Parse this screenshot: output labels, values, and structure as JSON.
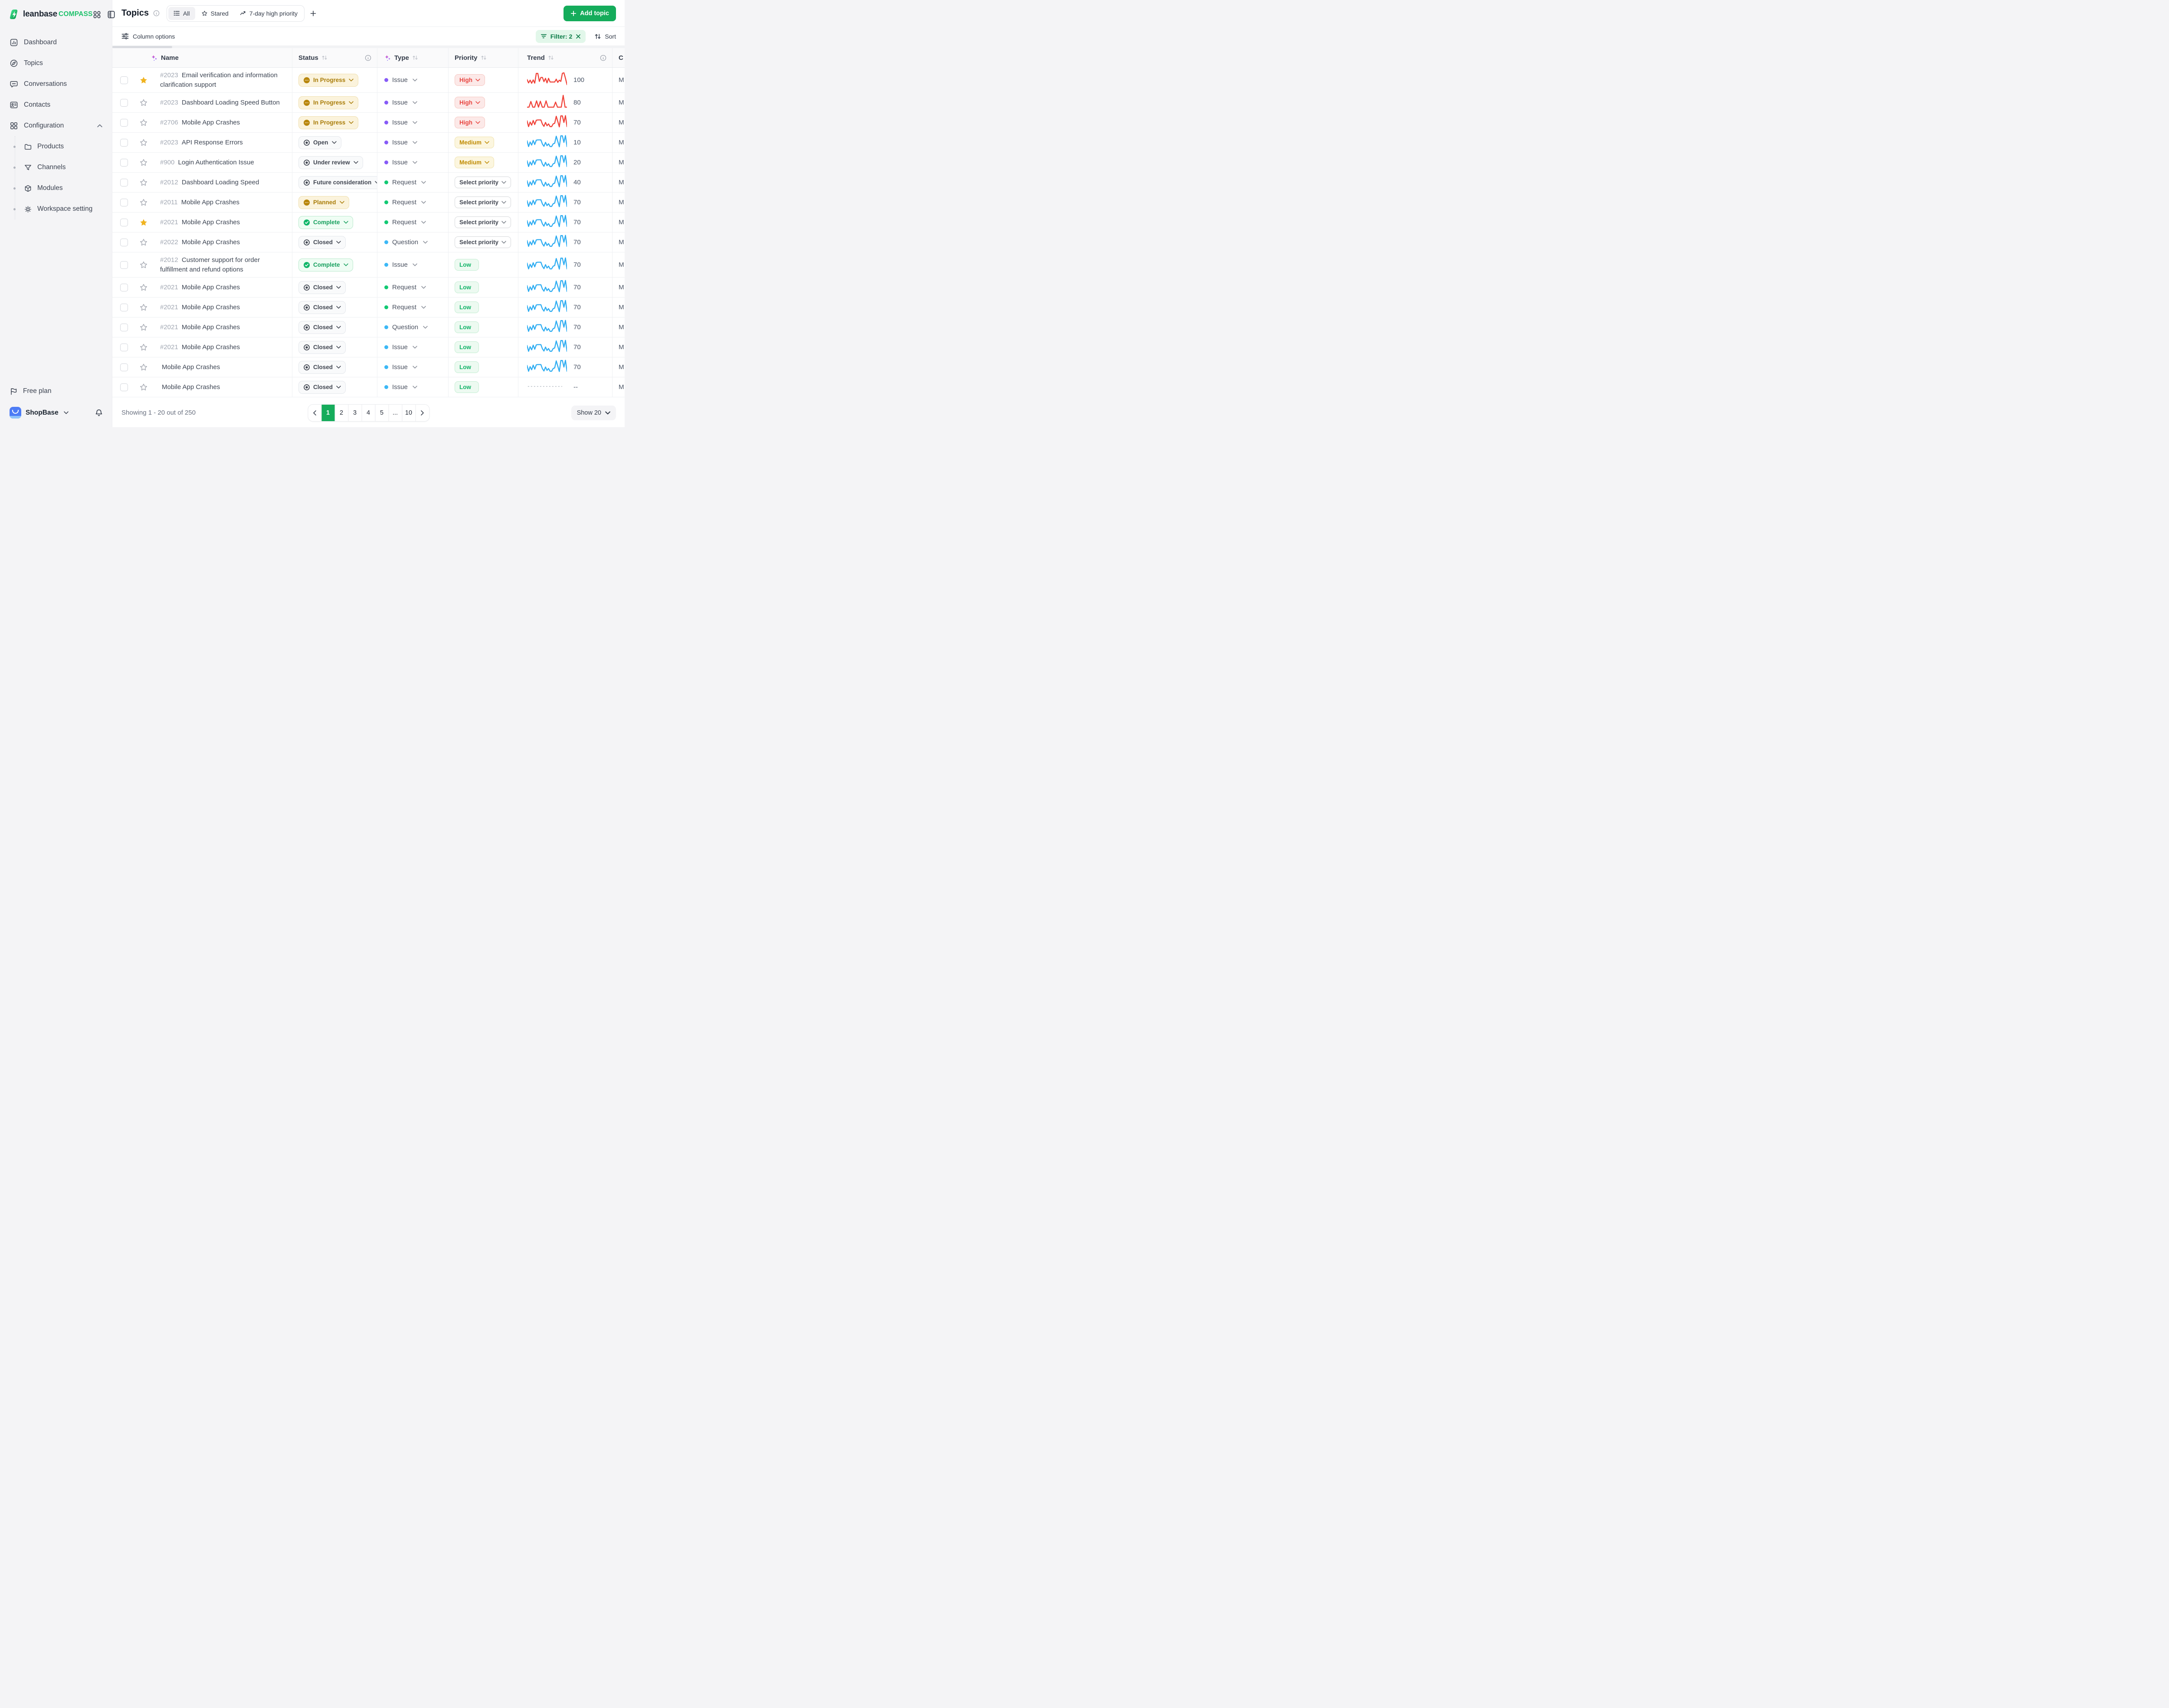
{
  "brand": {
    "name": "leanbase",
    "suffix": "COMPASS"
  },
  "sidebar": {
    "items": [
      {
        "label": "Dashboard",
        "icon": "dashboard"
      },
      {
        "label": "Topics",
        "icon": "compass"
      },
      {
        "label": "Conversations",
        "icon": "chat"
      },
      {
        "label": "Contacts",
        "icon": "contact"
      },
      {
        "label": "Configuration",
        "icon": "grid",
        "expandable": true
      }
    ],
    "sub_items": [
      {
        "label": "Products",
        "icon": "folder"
      },
      {
        "label": "Channels",
        "icon": "funnel"
      },
      {
        "label": "Modules",
        "icon": "cube"
      },
      {
        "label": "Workspace setting",
        "icon": "gear"
      }
    ],
    "plan_label": "Free plan",
    "workspace_name": "ShopBase"
  },
  "topbar": {
    "title": "Topics",
    "tabs": [
      {
        "label": "All",
        "icon": "list",
        "active": true
      },
      {
        "label": "Stared",
        "icon": "star",
        "active": false
      },
      {
        "label": "7-day high priority",
        "icon": "trend",
        "active": false
      }
    ],
    "add_label": "Add topic"
  },
  "toolbar": {
    "column_options_label": "Column options",
    "filter_label": "Filter: 2",
    "sort_label": "Sort"
  },
  "table": {
    "headers": {
      "name": "Name",
      "status": "Status",
      "type": "Type",
      "priority": "Priority",
      "trend": "Trend",
      "extra": "C"
    }
  },
  "rows": [
    {
      "id": "#2023",
      "name": "Email verification and information clarification support",
      "tall": true,
      "starred": true,
      "status": {
        "label": "In Progress",
        "kind": "amber",
        "icon": "dots"
      },
      "type": {
        "label": "Issue",
        "dot": "#875BF7"
      },
      "priority": {
        "label": "High",
        "kind": "high",
        "chevron": true
      },
      "trend": {
        "series": "red1",
        "color": "#F04339",
        "value": "100"
      },
      "extra": "M"
    },
    {
      "id": "#2023",
      "name": "Dashboard Loading Speed Button",
      "tall": false,
      "starred": false,
      "status": {
        "label": "In Progress",
        "kind": "amber",
        "icon": "dots"
      },
      "type": {
        "label": "Issue",
        "dot": "#875BF7"
      },
      "priority": {
        "label": "High",
        "kind": "high",
        "chevron": true
      },
      "trend": {
        "series": "red2",
        "color": "#F04339",
        "value": "80"
      },
      "extra": "M"
    },
    {
      "id": "#2706",
      "name": "Mobile App Crashes",
      "tall": false,
      "starred": false,
      "status": {
        "label": "In Progress",
        "kind": "amber",
        "icon": "dots"
      },
      "type": {
        "label": "Issue",
        "dot": "#875BF7"
      },
      "priority": {
        "label": "High",
        "kind": "high",
        "chevron": true
      },
      "trend": {
        "series": "wave",
        "color": "#F04339",
        "value": "70"
      },
      "extra": "M"
    },
    {
      "id": "#2023",
      "name": "API Response Errors",
      "tall": false,
      "starred": false,
      "status": {
        "label": "Open",
        "kind": "graysty",
        "icon": "radio"
      },
      "type": {
        "label": "Issue",
        "dot": "#875BF7"
      },
      "priority": {
        "label": "Medium",
        "kind": "medium",
        "chevron": true
      },
      "trend": {
        "series": "wave",
        "color": "#2FADF2",
        "value": "10"
      },
      "extra": "M"
    },
    {
      "id": "#900",
      "name": "Login Authentication Issue",
      "tall": false,
      "starred": false,
      "status": {
        "label": "Under review",
        "kind": "graysty",
        "icon": "radio"
      },
      "type": {
        "label": "Issue",
        "dot": "#875BF7"
      },
      "priority": {
        "label": "Medium",
        "kind": "medium",
        "chevron": true
      },
      "trend": {
        "series": "wave",
        "color": "#2FADF2",
        "value": "20"
      },
      "extra": "M"
    },
    {
      "id": "#2012",
      "name": "Dashboard Loading Speed",
      "tall": false,
      "starred": false,
      "status": {
        "label": "Future consideration",
        "kind": "graysty",
        "icon": "radio"
      },
      "type": {
        "label": "Request",
        "dot": "#12C973"
      },
      "priority": {
        "label": "Select priority",
        "kind": "select",
        "chevron": true
      },
      "trend": {
        "series": "wave",
        "color": "#2FADF2",
        "value": "40"
      },
      "extra": "M"
    },
    {
      "id": "#2011",
      "name": "Mobile App Crashes",
      "tall": false,
      "starred": false,
      "status": {
        "label": "Planned",
        "kind": "amber",
        "icon": "dots"
      },
      "type": {
        "label": "Request",
        "dot": "#12C973"
      },
      "priority": {
        "label": "Select priority",
        "kind": "select",
        "chevron": true
      },
      "trend": {
        "series": "wave",
        "color": "#2FADF2",
        "value": "70"
      },
      "extra": "M"
    },
    {
      "id": "#2021",
      "name": "Mobile App Crashes",
      "tall": false,
      "starred": true,
      "status": {
        "label": "Complete",
        "kind": "greensty",
        "icon": "check"
      },
      "type": {
        "label": "Request",
        "dot": "#12C973"
      },
      "priority": {
        "label": "Select priority",
        "kind": "select",
        "chevron": true
      },
      "trend": {
        "series": "wave",
        "color": "#2FADF2",
        "value": "70"
      },
      "extra": "M"
    },
    {
      "id": "#2022",
      "name": "Mobile App Crashes",
      "tall": false,
      "starred": false,
      "status": {
        "label": "Closed",
        "kind": "graysty",
        "icon": "radio"
      },
      "type": {
        "label": "Question",
        "dot": "#3CB8F6"
      },
      "priority": {
        "label": "Select priority",
        "kind": "select",
        "chevron": true
      },
      "trend": {
        "series": "wave",
        "color": "#2FADF2",
        "value": "70"
      },
      "extra": "M"
    },
    {
      "id": "#2012",
      "name": "Customer support for order fulfillment and refund options",
      "tall": true,
      "starred": false,
      "status": {
        "label": "Complete",
        "kind": "greensty",
        "icon": "check"
      },
      "type": {
        "label": "Issue",
        "dot": "#3CB8F6"
      },
      "priority": {
        "label": "Low",
        "kind": "low",
        "chevron": false
      },
      "trend": {
        "series": "wave",
        "color": "#2FADF2",
        "value": "70"
      },
      "extra": "M"
    },
    {
      "id": "#2021",
      "name": "Mobile App Crashes",
      "tall": false,
      "starred": false,
      "status": {
        "label": "Closed",
        "kind": "graysty",
        "icon": "radio"
      },
      "type": {
        "label": "Request",
        "dot": "#12C973"
      },
      "priority": {
        "label": "Low",
        "kind": "low",
        "chevron": false
      },
      "trend": {
        "series": "wave",
        "color": "#2FADF2",
        "value": "70"
      },
      "extra": "M"
    },
    {
      "id": "#2021",
      "name": "Mobile App Crashes",
      "tall": false,
      "starred": false,
      "status": {
        "label": "Closed",
        "kind": "graysty",
        "icon": "radio"
      },
      "type": {
        "label": "Request",
        "dot": "#12C973"
      },
      "priority": {
        "label": "Low",
        "kind": "low",
        "chevron": false
      },
      "trend": {
        "series": "wave",
        "color": "#2FADF2",
        "value": "70"
      },
      "extra": "M"
    },
    {
      "id": "#2021",
      "name": "Mobile App Crashes",
      "tall": false,
      "starred": false,
      "status": {
        "label": "Closed",
        "kind": "graysty",
        "icon": "radio"
      },
      "type": {
        "label": "Question",
        "dot": "#3CB8F6"
      },
      "priority": {
        "label": "Low",
        "kind": "low",
        "chevron": false
      },
      "trend": {
        "series": "wave",
        "color": "#2FADF2",
        "value": "70"
      },
      "extra": "M"
    },
    {
      "id": "#2021",
      "name": "Mobile App Crashes",
      "tall": false,
      "starred": false,
      "status": {
        "label": "Closed",
        "kind": "graysty",
        "icon": "radio"
      },
      "type": {
        "label": "Issue",
        "dot": "#3CB8F6"
      },
      "priority": {
        "label": "Low",
        "kind": "low",
        "chevron": false
      },
      "trend": {
        "series": "wave",
        "color": "#2FADF2",
        "value": "70"
      },
      "extra": "M"
    },
    {
      "id": "",
      "name": "Mobile App Crashes",
      "tall": false,
      "starred": false,
      "status": {
        "label": "Closed",
        "kind": "graysty",
        "icon": "radio"
      },
      "type": {
        "label": "Issue",
        "dot": "#3CB8F6"
      },
      "priority": {
        "label": "Low",
        "kind": "low",
        "chevron": false
      },
      "trend": {
        "series": "wave",
        "color": "#2FADF2",
        "value": "70"
      },
      "extra": "M"
    },
    {
      "id": "",
      "name": "Mobile App Crashes",
      "tall": false,
      "starred": false,
      "status": {
        "label": "Closed",
        "kind": "graysty",
        "icon": "radio"
      },
      "type": {
        "label": "Issue",
        "dot": "#3CB8F6"
      },
      "priority": {
        "label": "Low",
        "kind": "low",
        "chevron": false
      },
      "trend": {
        "series": "dashed",
        "color": "#C9CDD3",
        "value": "--"
      },
      "extra": "M"
    }
  ],
  "pagination": {
    "summary": "Showing 1 - 20 out of 250",
    "pages": [
      "1",
      "2",
      "3",
      "4",
      "5",
      "...",
      "10"
    ],
    "active_page": "1",
    "show_label": "Show 20"
  },
  "chart_data": {
    "type": "line",
    "title": "7-day trend sparklines (one per table row)",
    "legend_position": "none",
    "grid": false,
    "axis_labels": false,
    "value_range": [
      0,
      100
    ],
    "series": [
      {
        "name": "red1",
        "color": "#F04339",
        "values": [
          45,
          18,
          40,
          15,
          42,
          16,
          95,
          95,
          30,
          62,
          62,
          28,
          55,
          18,
          55,
          25,
          25,
          25,
          25,
          48,
          22,
          40,
          30,
          96,
          100,
          55,
          4
        ]
      },
      {
        "name": "red2",
        "color": "#F04339",
        "values": [
          4,
          4,
          50,
          4,
          4,
          55,
          4,
          52,
          4,
          4,
          55,
          4,
          4,
          4,
          4,
          45,
          4,
          4,
          4,
          100,
          4,
          4
        ]
      },
      {
        "name": "wave",
        "color": "#2FADF2",
        "values": [
          55,
          8,
          45,
          20,
          58,
          25,
          60,
          62,
          62,
          62,
          28,
          10,
          42,
          15,
          30,
          8,
          8,
          30,
          35,
          92,
          50,
          6,
          95,
          95,
          42,
          97,
          8
        ]
      }
    ],
    "row_values": [
      100,
      80,
      70,
      10,
      20,
      40,
      70,
      70,
      70,
      70,
      70,
      70,
      70,
      70,
      70,
      null
    ]
  }
}
